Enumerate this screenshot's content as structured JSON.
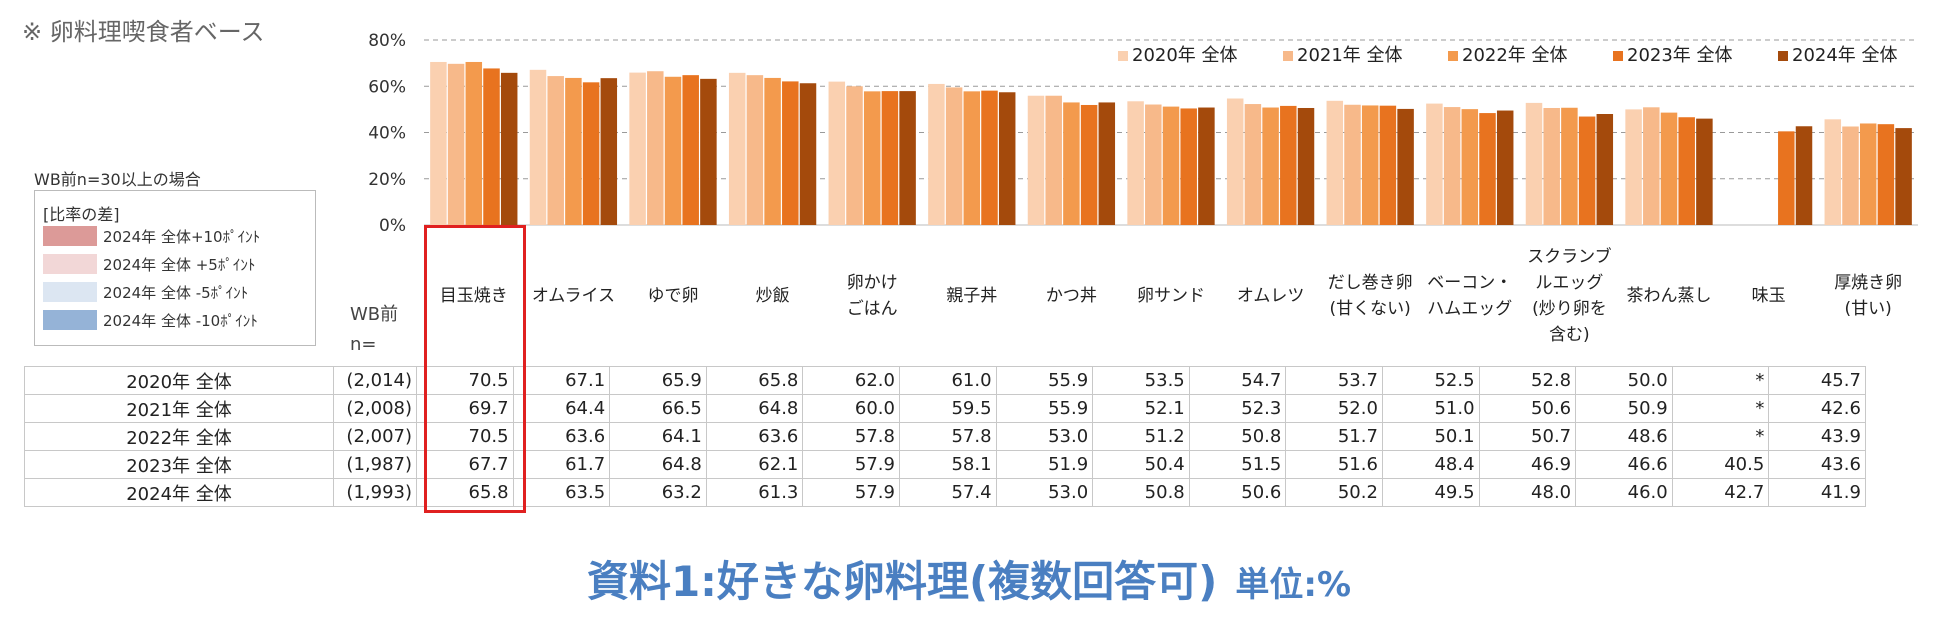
{
  "note": "※ 卵料理喫食者ベース",
  "wb_note": "WB前n=30以上の場合",
  "diff_legend": {
    "title": "[比率の差]",
    "items": [
      {
        "label": "2024年 全体+10ﾎﾟｲﾝﾄ",
        "color": "#dc9a98"
      },
      {
        "label": "2024年 全体 +5ﾎﾟｲﾝﾄ",
        "color": "#f2d7d7"
      },
      {
        "label": "2024年 全体 -5ﾎﾟｲﾝﾄ",
        "color": "#dce6f2"
      },
      {
        "label": "2024年 全体 -10ﾎﾟｲﾝﾄ",
        "color": "#95b3d7"
      }
    ]
  },
  "chart_data": {
    "type": "bar",
    "y_ticks": [
      "80%",
      "60%",
      "40%",
      "20%",
      "0%"
    ],
    "ylim": [
      0,
      80
    ],
    "grid": true,
    "legend_position": "top-right",
    "categories": [
      "目玉焼き",
      "オムライス",
      "ゆで卵",
      "炒飯",
      "卵かけ\nごはん",
      "親子丼",
      "かつ丼",
      "卵サンド",
      "オムレツ",
      "だし巻き卵\n(甘くない)",
      "ベーコン・\nハムエッグ",
      "スクランブ\nルエッグ\n(炒り卵を\n含む)",
      "茶わん蒸し",
      "味玉",
      "厚焼き卵\n(甘い)"
    ],
    "series": [
      {
        "name": "2020年 全体",
        "color": "#fad0b0",
        "wb_n": "(2,014)",
        "values": [
          70.5,
          67.1,
          65.9,
          65.8,
          62.0,
          61.0,
          55.9,
          53.5,
          54.7,
          53.7,
          52.5,
          52.8,
          50.0,
          null,
          45.7
        ]
      },
      {
        "name": "2021年 全体",
        "color": "#f7b98a",
        "wb_n": "(2,008)",
        "values": [
          69.7,
          64.4,
          66.5,
          64.8,
          60.0,
          59.5,
          55.9,
          52.1,
          52.3,
          52.0,
          51.0,
          50.6,
          50.9,
          null,
          42.6
        ]
      },
      {
        "name": "2022年 全体",
        "color": "#f39a4d",
        "wb_n": "(2,007)",
        "values": [
          70.5,
          63.6,
          64.1,
          63.6,
          57.8,
          57.8,
          53.0,
          51.2,
          50.8,
          51.7,
          50.1,
          50.7,
          48.6,
          null,
          43.9
        ]
      },
      {
        "name": "2023年 全体",
        "color": "#e8731f",
        "wb_n": "(1,987)",
        "values": [
          67.7,
          61.7,
          64.8,
          62.1,
          57.9,
          58.1,
          51.9,
          50.4,
          51.5,
          51.6,
          48.4,
          46.9,
          46.6,
          40.5,
          43.6
        ]
      },
      {
        "name": "2024年 全体",
        "color": "#a44a0c",
        "wb_n": "(1,993)",
        "values": [
          65.8,
          63.5,
          63.2,
          61.3,
          57.9,
          57.4,
          53.0,
          50.8,
          50.6,
          50.2,
          49.5,
          48.0,
          46.0,
          42.7,
          41.9
        ]
      }
    ],
    "missing_mark": "*",
    "table_header": "WB前\nn=",
    "highlighted_category": "目玉焼き"
  },
  "caption": {
    "title": "資料1:好きな卵料理(複数回答可)",
    "unit": "単位:%"
  }
}
